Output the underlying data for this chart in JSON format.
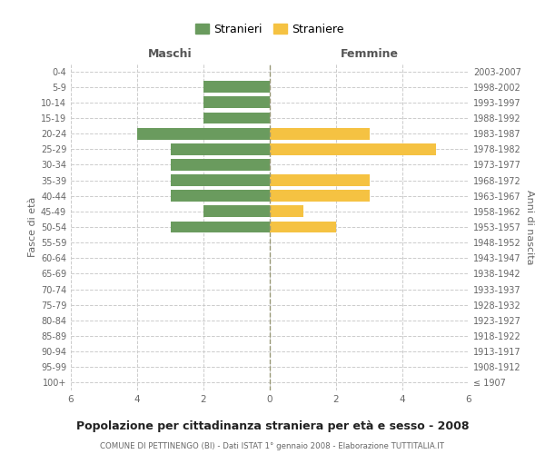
{
  "age_groups": [
    "100+",
    "95-99",
    "90-94",
    "85-89",
    "80-84",
    "75-79",
    "70-74",
    "65-69",
    "60-64",
    "55-59",
    "50-54",
    "45-49",
    "40-44",
    "35-39",
    "30-34",
    "25-29",
    "20-24",
    "15-19",
    "10-14",
    "5-9",
    "0-4"
  ],
  "birth_years": [
    "≤ 1907",
    "1908-1912",
    "1913-1917",
    "1918-1922",
    "1923-1927",
    "1928-1932",
    "1933-1937",
    "1938-1942",
    "1943-1947",
    "1948-1952",
    "1953-1957",
    "1958-1962",
    "1963-1967",
    "1968-1972",
    "1973-1977",
    "1978-1982",
    "1983-1987",
    "1988-1992",
    "1993-1997",
    "1998-2002",
    "2003-2007"
  ],
  "males": [
    0,
    0,
    0,
    0,
    0,
    0,
    0,
    0,
    0,
    0,
    3,
    2,
    3,
    3,
    3,
    3,
    4,
    2,
    2,
    2,
    0
  ],
  "females": [
    0,
    0,
    0,
    0,
    0,
    0,
    0,
    0,
    0,
    0,
    2,
    1,
    3,
    3,
    0,
    5,
    3,
    0,
    0,
    0,
    0
  ],
  "male_color": "#6a9b5e",
  "female_color": "#f5c242",
  "title": "Popolazione per cittadinanza straniera per età e sesso - 2008",
  "subtitle": "COMUNE DI PETTINENGO (BI) - Dati ISTAT 1° gennaio 2008 - Elaborazione TUTTITALIA.IT",
  "xlabel_left": "Maschi",
  "xlabel_right": "Femmine",
  "ylabel_left": "Fasce di età",
  "ylabel_right": "Anni di nascita",
  "legend_male": "Stranieri",
  "legend_female": "Straniere",
  "xlim": 6,
  "bg_color": "#ffffff",
  "grid_color": "#cccccc",
  "bar_height": 0.75
}
